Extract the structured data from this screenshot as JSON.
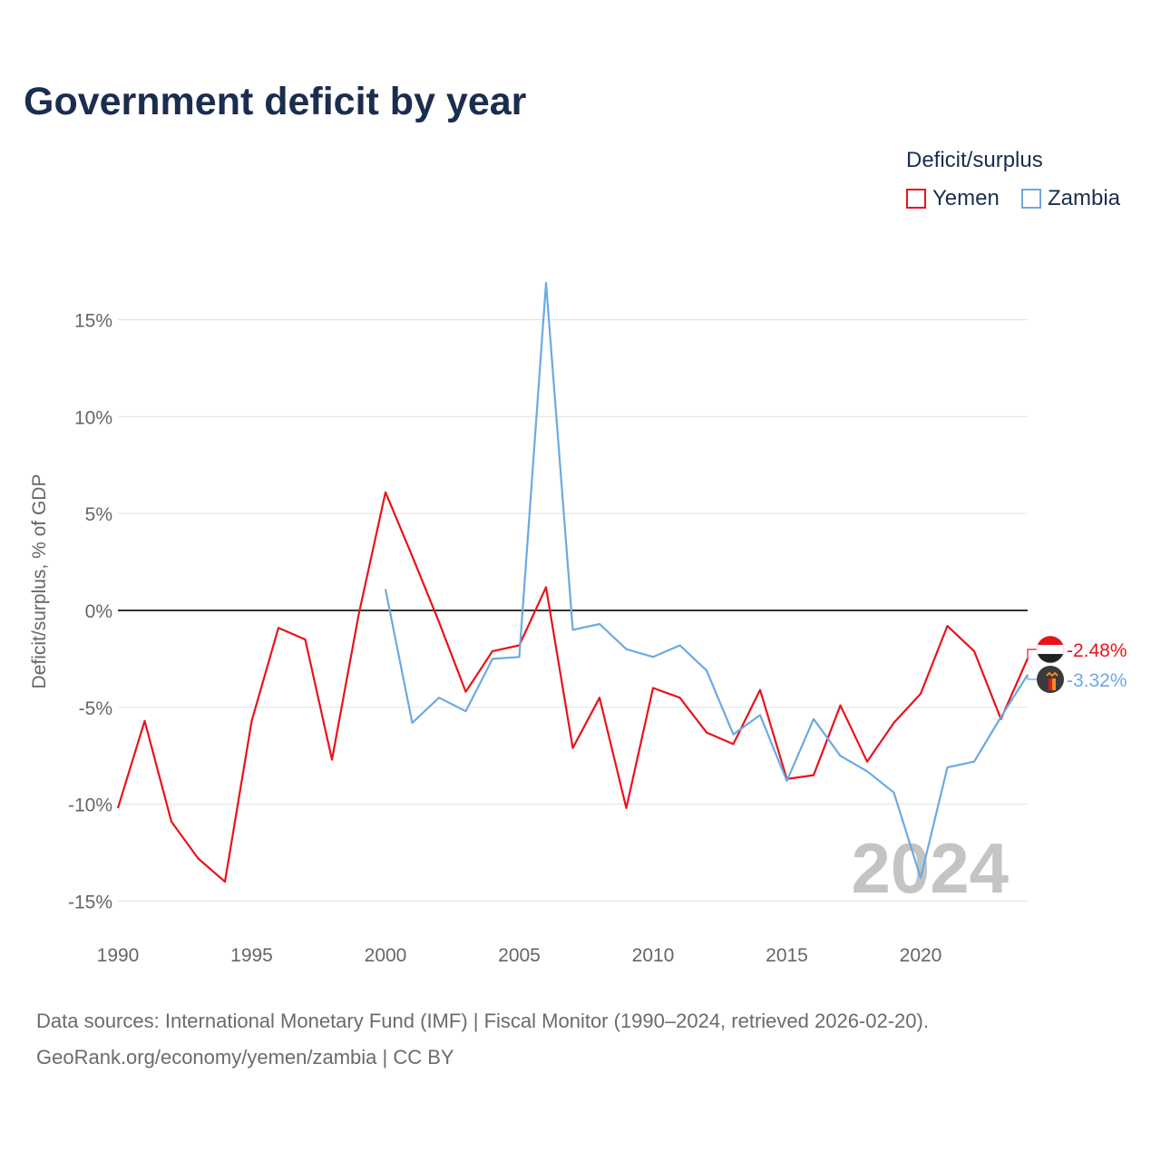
{
  "title": "Government deficit by year",
  "legend": {
    "title": "Deficit/surplus",
    "items": [
      {
        "label": "Yemen",
        "color": "#e8131b"
      },
      {
        "label": "Zambia",
        "color": "#6aaae4"
      }
    ]
  },
  "footer": {
    "line1": "Data sources: International Monetary Fund (IMF) | Fiscal Monitor (1990–2024, retrieved 2026-02-20).",
    "line2": "GeoRank.org/economy/yemen/zambia | CC BY"
  },
  "chart_data": {
    "type": "line",
    "title": "Government deficit by year",
    "xlabel": "",
    "ylabel": "Deficit/surplus, % of GDP",
    "xlim": [
      1990,
      2024
    ],
    "ylim": [
      -15,
      15
    ],
    "x_ticks": [
      1990,
      1995,
      2000,
      2005,
      2010,
      2015,
      2020
    ],
    "x_tick_labels": [
      "1990",
      "1995",
      "2000",
      "2005",
      "2010",
      "2015",
      "2020"
    ],
    "y_ticks": [
      15,
      10,
      5,
      0,
      -5,
      -10,
      -15
    ],
    "y_tick_labels": [
      "15%",
      "10%",
      "5%",
      "0%",
      "-5%",
      "-10%",
      "-15%"
    ],
    "watermark": "2024",
    "legend_position": "top-right",
    "series": [
      {
        "name": "Yemen",
        "color": "#e8131b",
        "end_label": "-2.48%",
        "x": [
          1990,
          1991,
          1992,
          1993,
          1994,
          1995,
          1996,
          1997,
          1998,
          1999,
          2000,
          2001,
          2002,
          2003,
          2004,
          2005,
          2006,
          2007,
          2008,
          2009,
          2010,
          2011,
          2012,
          2013,
          2014,
          2015,
          2016,
          2017,
          2018,
          2019,
          2020,
          2021,
          2022,
          2023,
          2024
        ],
        "y": [
          -10.2,
          -5.7,
          -10.9,
          -12.8,
          -14.0,
          -5.7,
          -0.9,
          -1.5,
          -7.7,
          -0.2,
          6.1,
          2.8,
          -0.6,
          -4.2,
          -2.1,
          -1.8,
          1.2,
          -7.1,
          -4.5,
          -10.2,
          -4.0,
          -4.5,
          -6.3,
          -6.9,
          -4.1,
          -8.7,
          -8.5,
          -4.9,
          -7.8,
          -5.8,
          -4.3,
          -0.8,
          -2.1,
          -5.6,
          -2.48
        ]
      },
      {
        "name": "Zambia",
        "color": "#6aaae4",
        "end_label": "-3.32%",
        "x": [
          2000,
          2001,
          2002,
          2003,
          2004,
          2005,
          2006,
          2007,
          2008,
          2009,
          2010,
          2011,
          2012,
          2013,
          2014,
          2015,
          2016,
          2017,
          2018,
          2019,
          2020,
          2021,
          2022,
          2023,
          2024
        ],
        "y": [
          1.1,
          -5.8,
          -4.5,
          -5.2,
          -2.5,
          -2.4,
          16.9,
          -1.0,
          -0.7,
          -2.0,
          -2.4,
          -1.8,
          -3.1,
          -6.4,
          -5.4,
          -8.8,
          -5.6,
          -7.5,
          -8.3,
          -9.4,
          -13.8,
          -8.1,
          -7.8,
          -5.5,
          -3.32
        ]
      }
    ]
  }
}
